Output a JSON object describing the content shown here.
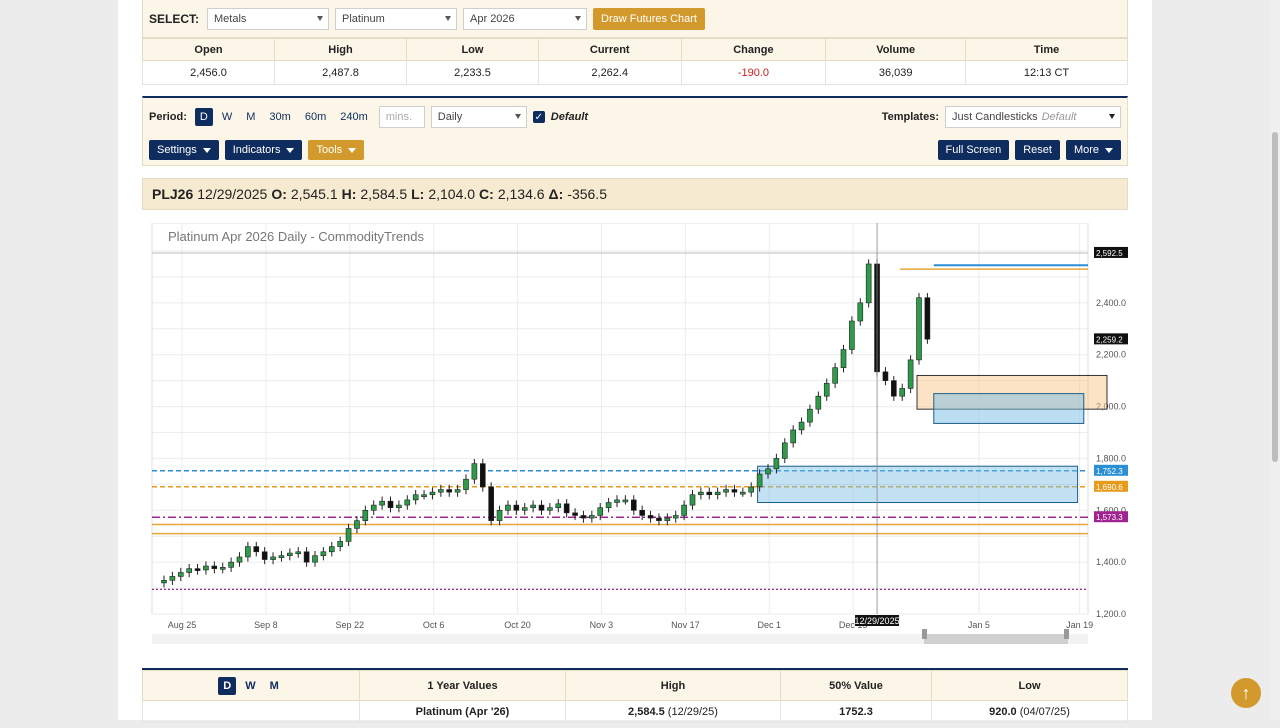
{
  "select": {
    "label": "SELECT:",
    "category": "Metals",
    "commodity": "Platinum",
    "contract": "Apr 2026",
    "draw_button": "Draw Futures Chart"
  },
  "quote": {
    "headers": [
      "Open",
      "High",
      "Low",
      "Current",
      "Change",
      "Volume",
      "Time"
    ],
    "values": [
      "2,456.0",
      "2,487.8",
      "2,233.5",
      "2,262.4",
      "-190.0",
      "36,039",
      "12:13 CT"
    ]
  },
  "period": {
    "label": "Period:",
    "buttons": [
      "D",
      "W",
      "M",
      "30m",
      "60m",
      "240m"
    ],
    "active": "D",
    "mins_placeholder": "mins.",
    "interval": "Daily",
    "default_label": "Default",
    "templates_label": "Templates:",
    "template_value": "Just Candlesticks",
    "template_tag": "Default"
  },
  "toolbar": {
    "settings": "Settings",
    "indicators": "Indicators",
    "tools": "Tools",
    "full_screen": "Full Screen",
    "reset": "Reset",
    "more": "More"
  },
  "ohlc": {
    "symbol": "PLJ26",
    "date": "12/29/2025",
    "o_label": "O:",
    "o": "2,545.1",
    "h_label": "H:",
    "h": "2,584.5",
    "l_label": "L:",
    "l": "2,104.0",
    "c_label": "C:",
    "c": "2,134.6",
    "d_label": "Δ:",
    "d": "-356.5"
  },
  "chart_data": {
    "type": "candlestick",
    "title": "Platinum Apr 2026 Daily - CommodityTrends",
    "x_ticks": [
      "Aug 25",
      "Sep 8",
      "Sep 22",
      "Oct 6",
      "Oct 20",
      "Nov 3",
      "Nov 17",
      "Dec 1",
      "Dec 15",
      "Jan 5",
      "Jan 19"
    ],
    "y_ticks": [
      "1,200.0",
      "1,400.0",
      "1,600.0",
      "1,800.0",
      "2,000.0",
      "2,200.0",
      "2,400.0"
    ],
    "ylim": [
      1200,
      2600
    ],
    "crosshair_date": "12/29/2025",
    "price_flags": [
      {
        "label": "2,592.5",
        "value": 2592.5,
        "color": "#111111"
      },
      {
        "label": "2,259.2",
        "value": 2259.2,
        "color": "#111111"
      },
      {
        "label": "1,752.3",
        "value": 1752.3,
        "color": "#2a8fd4"
      },
      {
        "label": "1,690.6",
        "value": 1690.6,
        "color": "#e69b1a"
      },
      {
        "label": "1,573.3",
        "value": 1573.3,
        "color": "#a0248f"
      }
    ],
    "closes": [
      1330,
      1345,
      1360,
      1375,
      1370,
      1385,
      1375,
      1380,
      1400,
      1420,
      1460,
      1440,
      1410,
      1420,
      1425,
      1435,
      1440,
      1400,
      1425,
      1440,
      1460,
      1480,
      1530,
      1560,
      1600,
      1620,
      1635,
      1610,
      1620,
      1640,
      1660,
      1660,
      1670,
      1680,
      1670,
      1680,
      1720,
      1780,
      1690,
      1560,
      1600,
      1620,
      1600,
      1610,
      1620,
      1600,
      1610,
      1625,
      1590,
      1580,
      1570,
      1580,
      1610,
      1630,
      1640,
      1640,
      1600,
      1580,
      1570,
      1560,
      1570,
      1580,
      1620,
      1660,
      1670,
      1660,
      1670,
      1680,
      1670,
      1670,
      1690,
      1740,
      1760,
      1800,
      1860,
      1910,
      1940,
      1990,
      2040,
      2090,
      2150,
      2220,
      2330,
      2400,
      2550,
      2134,
      2100,
      2040,
      2070,
      2180,
      2420,
      2260
    ]
  },
  "bottom": {
    "periods": [
      "D",
      "W",
      "M"
    ],
    "active": "D",
    "headers": [
      "1 Year Values",
      "High",
      "50% Value",
      "Low"
    ],
    "row": {
      "name": "Platinum (Apr '26)",
      "high": "2,584.5",
      "high_date": "(12/29/25)",
      "mid": "1752.3",
      "low": "920.0",
      "low_date": "(04/07/25)"
    }
  }
}
